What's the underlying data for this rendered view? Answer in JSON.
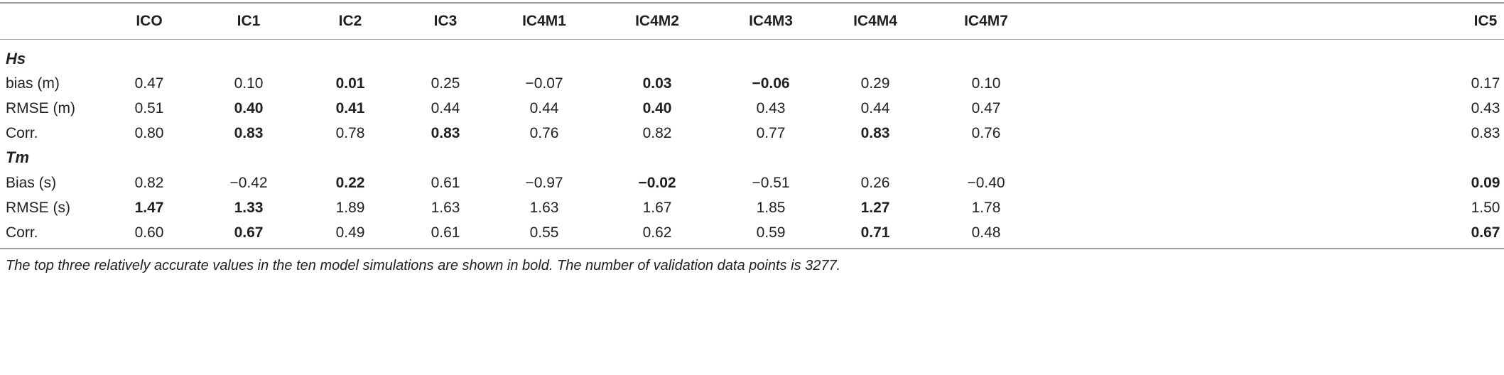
{
  "table": {
    "columns": [
      "ICO",
      "IC1",
      "IC2",
      "IC3",
      "IC4M1",
      "IC4M2",
      "IC4M3",
      "IC4M4",
      "IC4M7",
      "IC5"
    ],
    "sections": [
      {
        "title": "Hs",
        "rows": [
          {
            "label": "bias (m)",
            "cells": [
              {
                "v": "0.47",
                "b": false
              },
              {
                "v": "0.10",
                "b": false
              },
              {
                "v": "0.01",
                "b": true
              },
              {
                "v": "0.25",
                "b": false
              },
              {
                "v": "−0.07",
                "b": false
              },
              {
                "v": "0.03",
                "b": true
              },
              {
                "v": "−0.06",
                "b": true
              },
              {
                "v": "0.29",
                "b": false
              },
              {
                "v": "0.10",
                "b": false
              },
              {
                "v": "0.17",
                "b": false
              }
            ]
          },
          {
            "label": "RMSE (m)",
            "cells": [
              {
                "v": "0.51",
                "b": false
              },
              {
                "v": "0.40",
                "b": true
              },
              {
                "v": "0.41",
                "b": true
              },
              {
                "v": "0.44",
                "b": false
              },
              {
                "v": "0.44",
                "b": false
              },
              {
                "v": "0.40",
                "b": true
              },
              {
                "v": "0.43",
                "b": false
              },
              {
                "v": "0.44",
                "b": false
              },
              {
                "v": "0.47",
                "b": false
              },
              {
                "v": "0.43",
                "b": false
              }
            ]
          },
          {
            "label": "Corr.",
            "cells": [
              {
                "v": "0.80",
                "b": false
              },
              {
                "v": "0.83",
                "b": true
              },
              {
                "v": "0.78",
                "b": false
              },
              {
                "v": "0.83",
                "b": true
              },
              {
                "v": "0.76",
                "b": false
              },
              {
                "v": "0.82",
                "b": false
              },
              {
                "v": "0.77",
                "b": false
              },
              {
                "v": "0.83",
                "b": true
              },
              {
                "v": "0.76",
                "b": false
              },
              {
                "v": "0.83",
                "b": false
              }
            ]
          }
        ]
      },
      {
        "title": "Tm",
        "rows": [
          {
            "label": "Bias (s)",
            "cells": [
              {
                "v": "0.82",
                "b": false
              },
              {
                "v": "−0.42",
                "b": false
              },
              {
                "v": "0.22",
                "b": true
              },
              {
                "v": "0.61",
                "b": false
              },
              {
                "v": "−0.97",
                "b": false
              },
              {
                "v": "−0.02",
                "b": true
              },
              {
                "v": "−0.51",
                "b": false
              },
              {
                "v": "0.26",
                "b": false
              },
              {
                "v": "−0.40",
                "b": false
              },
              {
                "v": "0.09",
                "b": true
              }
            ]
          },
          {
            "label": "RMSE (s)",
            "cells": [
              {
                "v": "1.47",
                "b": true
              },
              {
                "v": "1.33",
                "b": true
              },
              {
                "v": "1.89",
                "b": false
              },
              {
                "v": "1.63",
                "b": false
              },
              {
                "v": "1.63",
                "b": false
              },
              {
                "v": "1.67",
                "b": false
              },
              {
                "v": "1.85",
                "b": false
              },
              {
                "v": "1.27",
                "b": true
              },
              {
                "v": "1.78",
                "b": false
              },
              {
                "v": "1.50",
                "b": false
              }
            ]
          },
          {
            "label": "Corr.",
            "cells": [
              {
                "v": "0.60",
                "b": false
              },
              {
                "v": "0.67",
                "b": true
              },
              {
                "v": "0.49",
                "b": false
              },
              {
                "v": "0.61",
                "b": false
              },
              {
                "v": "0.55",
                "b": false
              },
              {
                "v": "0.62",
                "b": false
              },
              {
                "v": "0.59",
                "b": false
              },
              {
                "v": "0.71",
                "b": true
              },
              {
                "v": "0.48",
                "b": false
              },
              {
                "v": "0.67",
                "b": true
              }
            ]
          }
        ]
      }
    ]
  },
  "footnote": "The top three relatively accurate values in the ten model simulations are shown in bold. The number of validation data points is 3277."
}
